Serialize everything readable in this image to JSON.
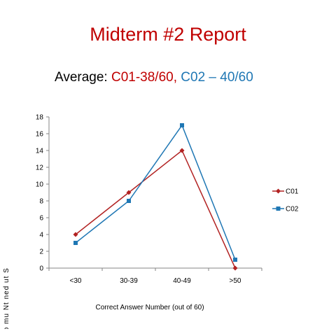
{
  "title": "Midterm #2 Report",
  "subtitle": {
    "prefix": "Average: ",
    "c01_text": "C01-38/60,",
    "c02_text": "C02 – 40/60"
  },
  "colors": {
    "title": "#c00000",
    "c01": "#c00000",
    "c02": "#1f77b4"
  },
  "chart_data": {
    "type": "line",
    "categories": [
      "<30",
      "30-39",
      "40-49",
      ">50"
    ],
    "series": [
      {
        "name": "C01",
        "values": [
          4,
          9,
          14,
          0
        ],
        "color": "#b22222",
        "marker": "diamond"
      },
      {
        "name": "C02",
        "values": [
          3,
          8,
          17,
          1
        ],
        "color": "#1f77b4",
        "marker": "square"
      }
    ],
    "xlabel": "Correct Answer Number (out of 60)",
    "ylabel": "r eb mu Nt ned ut S",
    "ylim": [
      0,
      18
    ],
    "yticks": [
      0,
      2,
      4,
      6,
      8,
      10,
      12,
      14,
      16,
      18
    ],
    "grid": false,
    "legend": "right"
  }
}
